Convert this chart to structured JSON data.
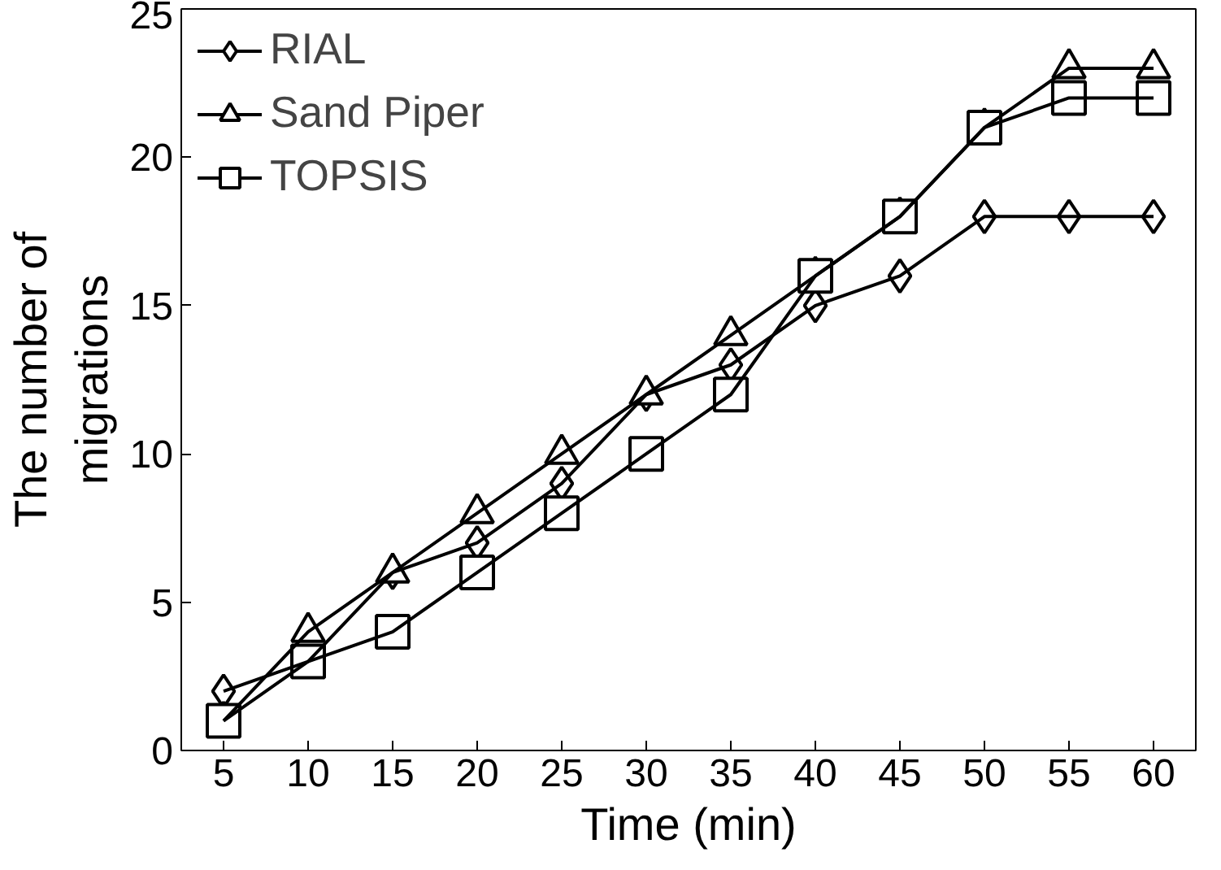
{
  "chart_data": {
    "type": "line",
    "xlabel": "Time (min)",
    "ylabel": "The number of\nmigrations",
    "categories": [
      "5",
      "10",
      "15",
      "20",
      "25",
      "30",
      "35",
      "40",
      "45",
      "50",
      "55",
      "60"
    ],
    "ylim": [
      0,
      25
    ],
    "yticks": [
      0,
      5,
      10,
      15,
      20,
      25
    ],
    "grid": false,
    "legend": "top left",
    "line_style": "solid",
    "series": [
      {
        "name": "RIAL",
        "color": "#000000",
        "marker": "diamond",
        "values": [
          2,
          3,
          6,
          7,
          9,
          12,
          13,
          15,
          16,
          18,
          18,
          18
        ]
      },
      {
        "name": "Sand Piper",
        "color": "#000000",
        "marker": "triangle",
        "values": [
          1,
          4,
          6,
          8,
          10,
          12,
          14,
          16,
          18,
          21,
          23,
          23
        ]
      },
      {
        "name": "TOPSIS",
        "color": "#000000",
        "marker": "square",
        "values": [
          1,
          3,
          4,
          6,
          8,
          10,
          12,
          16,
          18,
          21,
          22,
          22
        ]
      }
    ]
  }
}
